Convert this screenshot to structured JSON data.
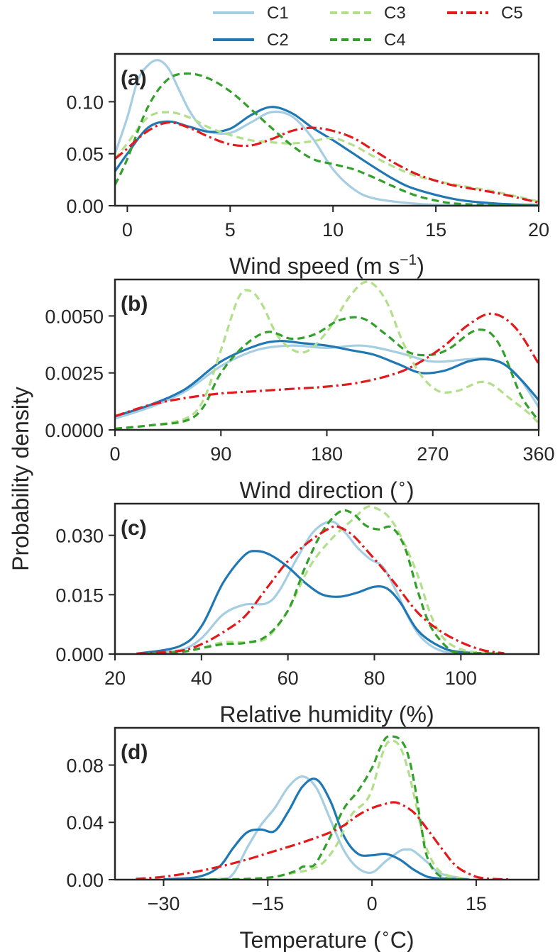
{
  "figure": {
    "ylabel": "Probability density",
    "legend": {
      "placement": "top-center",
      "entries": [
        {
          "name": "C1",
          "color": "#a6cee3",
          "dash": "solid"
        },
        {
          "name": "C2",
          "color": "#1f78b4",
          "dash": "solid"
        },
        {
          "name": "C3",
          "color": "#b2df8a",
          "dash": "dashed"
        },
        {
          "name": "C4",
          "color": "#33a02c",
          "dash": "dashed"
        },
        {
          "name": "C5",
          "color": "#e31a1c",
          "dash": "dashdot"
        }
      ]
    }
  },
  "chart_data": [
    {
      "type": "line",
      "panel_label": "(a)",
      "xlabel": "Wind speed (m s",
      "xlabel_sup": "−1",
      "xlabel_end": ")",
      "xlim": [
        -0.6,
        20
      ],
      "ylim": [
        0,
        0.146
      ],
      "xticks": [
        0,
        5,
        10,
        15,
        20
      ],
      "xtick_labels": [
        "0",
        "5",
        "10",
        "15",
        "20"
      ],
      "yticks": [
        0,
        0.05,
        0.1
      ],
      "ytick_labels": [
        "0.00",
        "0.05",
        "0.10"
      ],
      "series": [
        {
          "name": "C1",
          "x": [
            -0.6,
            0,
            0.5,
            1,
            1.5,
            2,
            2.5,
            3,
            3.5,
            4,
            5,
            6,
            7,
            8,
            9,
            10,
            11,
            12,
            14,
            16,
            18,
            20
          ],
          "y": [
            0.05,
            0.085,
            0.12,
            0.135,
            0.14,
            0.132,
            0.112,
            0.092,
            0.078,
            0.071,
            0.07,
            0.08,
            0.09,
            0.086,
            0.065,
            0.035,
            0.016,
            0.007,
            0.002,
            0.0005,
            0.0002,
            0.0001
          ]
        },
        {
          "name": "C2",
          "x": [
            -0.6,
            0,
            1,
            2,
            3,
            4,
            5,
            6,
            7,
            8,
            9,
            10,
            11,
            12,
            13,
            14,
            16,
            18,
            20
          ],
          "y": [
            0.033,
            0.05,
            0.075,
            0.081,
            0.076,
            0.071,
            0.074,
            0.087,
            0.095,
            0.089,
            0.075,
            0.063,
            0.05,
            0.037,
            0.025,
            0.016,
            0.006,
            0.002,
            0.0005
          ]
        },
        {
          "name": "C3",
          "x": [
            -0.6,
            0,
            1,
            2,
            3,
            4,
            5,
            6,
            7,
            8,
            9,
            10,
            11,
            12,
            13,
            14,
            15,
            16,
            18,
            20
          ],
          "y": [
            0.045,
            0.06,
            0.085,
            0.09,
            0.085,
            0.075,
            0.068,
            0.063,
            0.061,
            0.06,
            0.062,
            0.065,
            0.058,
            0.047,
            0.037,
            0.029,
            0.024,
            0.02,
            0.013,
            0.004
          ]
        },
        {
          "name": "C4",
          "x": [
            -0.6,
            0,
            1,
            2,
            3,
            4,
            5,
            6,
            7,
            8,
            9,
            10,
            11,
            12,
            13,
            14,
            15,
            16,
            18,
            20
          ],
          "y": [
            0.02,
            0.045,
            0.095,
            0.122,
            0.127,
            0.122,
            0.11,
            0.093,
            0.075,
            0.058,
            0.045,
            0.04,
            0.035,
            0.027,
            0.018,
            0.01,
            0.005,
            0.002,
            0.0005,
            0.0001
          ]
        },
        {
          "name": "C5",
          "x": [
            -0.6,
            0,
            1,
            2,
            3,
            4,
            5,
            6,
            7,
            8,
            9,
            10,
            11,
            12,
            13,
            14,
            15,
            16,
            18,
            20
          ],
          "y": [
            0.045,
            0.055,
            0.072,
            0.08,
            0.075,
            0.066,
            0.059,
            0.058,
            0.064,
            0.072,
            0.075,
            0.072,
            0.065,
            0.053,
            0.041,
            0.031,
            0.024,
            0.019,
            0.012,
            0.003
          ]
        }
      ]
    },
    {
      "type": "line",
      "panel_label": "(b)",
      "xlabel": "Wind direction (",
      "xlabel_sup": "∘",
      "xlabel_end": ")",
      "xlim": [
        0,
        360
      ],
      "ylim": [
        0,
        0.0066
      ],
      "xticks": [
        0,
        90,
        180,
        270,
        360
      ],
      "xtick_labels": [
        "0",
        "90",
        "180",
        "270",
        "360"
      ],
      "yticks": [
        0,
        0.0025,
        0.005
      ],
      "ytick_labels": [
        "0.0000",
        "0.0025",
        "0.0050"
      ],
      "series": [
        {
          "name": "C1",
          "x": [
            0,
            30,
            60,
            90,
            120,
            150,
            180,
            210,
            240,
            270,
            300,
            320,
            340,
            360
          ],
          "y": [
            0.0005,
            0.001,
            0.0017,
            0.0028,
            0.0035,
            0.0037,
            0.0036,
            0.0037,
            0.0034,
            0.003,
            0.0031,
            0.0031,
            0.0025,
            0.001
          ]
        },
        {
          "name": "C2",
          "x": [
            0,
            30,
            60,
            90,
            120,
            140,
            160,
            180,
            200,
            220,
            240,
            260,
            280,
            300,
            315,
            330,
            345,
            360
          ],
          "y": [
            0.0006,
            0.0011,
            0.0018,
            0.003,
            0.0037,
            0.0039,
            0.0038,
            0.0037,
            0.0035,
            0.0033,
            0.0029,
            0.0025,
            0.0026,
            0.003,
            0.0031,
            0.0029,
            0.0022,
            0.0013
          ]
        },
        {
          "name": "C3",
          "x": [
            0,
            30,
            60,
            75,
            90,
            105,
            115,
            125,
            140,
            160,
            180,
            200,
            215,
            230,
            245,
            260,
            275,
            290,
            300,
            310,
            320,
            335,
            350,
            360
          ],
          "y": [
            5e-05,
            0.0002,
            0.0005,
            0.0013,
            0.0035,
            0.0058,
            0.0061,
            0.0055,
            0.004,
            0.0034,
            0.0043,
            0.0059,
            0.0065,
            0.0057,
            0.0038,
            0.0024,
            0.0017,
            0.0017,
            0.0019,
            0.0021,
            0.002,
            0.0014,
            0.0008,
            0.0003
          ]
        },
        {
          "name": "C4",
          "x": [
            0,
            30,
            60,
            75,
            90,
            110,
            130,
            150,
            170,
            190,
            210,
            230,
            250,
            270,
            285,
            300,
            310,
            320,
            330,
            345,
            360
          ],
          "y": [
            5e-05,
            0.0002,
            0.0004,
            0.001,
            0.0025,
            0.0037,
            0.0043,
            0.004,
            0.0042,
            0.0048,
            0.0049,
            0.0042,
            0.0034,
            0.0033,
            0.0036,
            0.0042,
            0.0044,
            0.0042,
            0.0034,
            0.0015,
            0.0004
          ]
        },
        {
          "name": "C5",
          "x": [
            0,
            30,
            60,
            90,
            120,
            150,
            180,
            210,
            240,
            260,
            280,
            300,
            320,
            340,
            360
          ],
          "y": [
            0.0006,
            0.0011,
            0.0014,
            0.0016,
            0.0017,
            0.0018,
            0.0019,
            0.0021,
            0.0025,
            0.003,
            0.0037,
            0.0046,
            0.0051,
            0.0045,
            0.0029
          ]
        }
      ]
    },
    {
      "type": "line",
      "panel_label": "(c)",
      "xlabel": "Relative humidity (%)",
      "xlabel_sup": "",
      "xlabel_end": "",
      "xlim": [
        20,
        118
      ],
      "ylim": [
        0,
        0.038
      ],
      "xticks": [
        20,
        40,
        60,
        80,
        100
      ],
      "xtick_labels": [
        "20",
        "40",
        "60",
        "80",
        "100"
      ],
      "yticks": [
        0,
        0.015,
        0.03
      ],
      "ytick_labels": [
        "0.000",
        "0.015",
        "0.030"
      ],
      "series": [
        {
          "name": "C1",
          "x": [
            25,
            35,
            40,
            45,
            50,
            55,
            58,
            62,
            66,
            70,
            73,
            76,
            79,
            82,
            85,
            88,
            91,
            95,
            100,
            110
          ],
          "y": [
            0.0001,
            0.001,
            0.004,
            0.01,
            0.0125,
            0.0128,
            0.016,
            0.024,
            0.031,
            0.0335,
            0.031,
            0.027,
            0.024,
            0.022,
            0.016,
            0.009,
            0.004,
            0.001,
            0.0002,
            0.0001
          ]
        },
        {
          "name": "C2",
          "x": [
            25,
            35,
            40,
            45,
            50,
            53,
            56,
            60,
            64,
            68,
            72,
            76,
            80,
            83,
            86,
            90,
            95,
            100,
            110
          ],
          "y": [
            0.0001,
            0.002,
            0.007,
            0.018,
            0.025,
            0.026,
            0.025,
            0.022,
            0.018,
            0.015,
            0.0145,
            0.0155,
            0.017,
            0.0165,
            0.013,
            0.006,
            0.002,
            0.0005,
            0.0001
          ]
        },
        {
          "name": "C3",
          "x": [
            25,
            35,
            40,
            45,
            50,
            55,
            60,
            65,
            70,
            75,
            78,
            80,
            83,
            86,
            90,
            93,
            96,
            100,
            105,
            110
          ],
          "y": [
            0.0001,
            0.0005,
            0.0015,
            0.003,
            0.003,
            0.004,
            0.011,
            0.022,
            0.029,
            0.034,
            0.037,
            0.037,
            0.035,
            0.03,
            0.02,
            0.01,
            0.004,
            0.0012,
            0.0003,
            0.0001
          ]
        },
        {
          "name": "C4",
          "x": [
            25,
            35,
            40,
            45,
            50,
            55,
            60,
            64,
            68,
            72,
            75,
            78,
            81,
            84,
            87,
            90,
            93,
            97,
            100,
            110
          ],
          "y": [
            0.0001,
            0.0005,
            0.0015,
            0.0025,
            0.0028,
            0.0045,
            0.011,
            0.022,
            0.031,
            0.036,
            0.0355,
            0.0325,
            0.0315,
            0.032,
            0.027,
            0.016,
            0.007,
            0.0015,
            0.0004,
            0.0001
          ]
        },
        {
          "name": "C5",
          "x": [
            25,
            35,
            40,
            45,
            50,
            55,
            60,
            65,
            70,
            72,
            75,
            78,
            82,
            85,
            90,
            95,
            100,
            105,
            110
          ],
          "y": [
            0.0001,
            0.0008,
            0.0025,
            0.0055,
            0.0095,
            0.0165,
            0.0235,
            0.0285,
            0.032,
            0.032,
            0.03,
            0.0265,
            0.0215,
            0.0175,
            0.0105,
            0.006,
            0.003,
            0.001,
            0.0002
          ]
        }
      ]
    },
    {
      "type": "line",
      "panel_label": "(d)",
      "xlabel": "Temperature (",
      "xlabel_sup": "∘",
      "xlabel_end": "C)",
      "xlim": [
        -37,
        24
      ],
      "ylim": [
        0,
        0.106
      ],
      "xticks": [
        -30,
        -15,
        0,
        15
      ],
      "xtick_labels": [
        "−30",
        "−15",
        "0",
        "15"
      ],
      "yticks": [
        0,
        0.04,
        0.08
      ],
      "ytick_labels": [
        "0.00",
        "0.04",
        "0.08"
      ],
      "series": [
        {
          "name": "C1",
          "x": [
            -30,
            -22,
            -20,
            -18,
            -16,
            -14,
            -12,
            -10,
            -8,
            -6,
            -4,
            -2,
            0,
            2,
            4,
            5,
            6,
            8,
            10,
            14
          ],
          "y": [
            0,
            0.0005,
            0.004,
            0.022,
            0.038,
            0.05,
            0.065,
            0.072,
            0.064,
            0.042,
            0.02,
            0.008,
            0.005,
            0.013,
            0.02,
            0.021,
            0.02,
            0.012,
            0.004,
            0.0002
          ]
        },
        {
          "name": "C2",
          "x": [
            -30,
            -25,
            -22,
            -20,
            -18,
            -16,
            -14,
            -12,
            -10,
            -8,
            -6,
            -4,
            -2,
            0,
            2,
            4,
            6,
            8,
            10,
            14
          ],
          "y": [
            0.0002,
            0.002,
            0.009,
            0.022,
            0.033,
            0.035,
            0.034,
            0.048,
            0.065,
            0.07,
            0.055,
            0.03,
            0.018,
            0.017,
            0.018,
            0.014,
            0.007,
            0.002,
            0.0008,
            0.0001
          ]
        },
        {
          "name": "C3",
          "x": [
            -25,
            -18,
            -14,
            -11,
            -9,
            -7,
            -5,
            -3,
            -1,
            0,
            1,
            2,
            3,
            4,
            5,
            6,
            7,
            8,
            10,
            14
          ],
          "y": [
            0,
            0.0005,
            0.002,
            0.005,
            0.007,
            0.012,
            0.025,
            0.045,
            0.054,
            0.063,
            0.08,
            0.094,
            0.097,
            0.093,
            0.08,
            0.06,
            0.038,
            0.02,
            0.005,
            0.0002
          ]
        },
        {
          "name": "C4",
          "x": [
            -25,
            -18,
            -14,
            -11,
            -10,
            -9,
            -8,
            -6,
            -4,
            -2,
            0,
            1,
            2,
            3,
            4,
            5,
            6,
            7,
            8,
            10,
            14
          ],
          "y": [
            0,
            0.0005,
            0.002,
            0.006,
            0.009,
            0.009,
            0.012,
            0.03,
            0.05,
            0.062,
            0.078,
            0.09,
            0.099,
            0.1,
            0.098,
            0.09,
            0.07,
            0.04,
            0.015,
            0.002,
            0.0001
          ]
        },
        {
          "name": "C5",
          "x": [
            -34,
            -30,
            -26,
            -22,
            -18,
            -14,
            -10,
            -6,
            -4,
            -2,
            0,
            2,
            3,
            4,
            6,
            8,
            10,
            12,
            14,
            16,
            20
          ],
          "y": [
            0.0005,
            0.002,
            0.005,
            0.009,
            0.014,
            0.02,
            0.026,
            0.033,
            0.038,
            0.045,
            0.05,
            0.053,
            0.054,
            0.053,
            0.047,
            0.035,
            0.022,
            0.01,
            0.004,
            0.001,
            0.0001
          ]
        }
      ]
    }
  ]
}
